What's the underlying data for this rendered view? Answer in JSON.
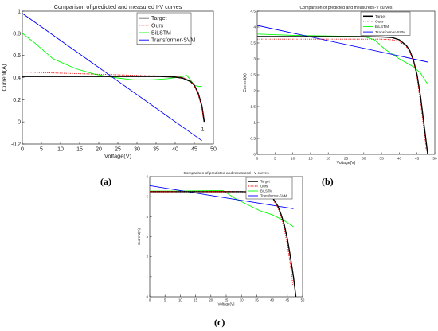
{
  "captions": [
    "(a)",
    "(b)",
    "(c)"
  ],
  "chart_data": [
    {
      "type": "line",
      "title": "Comparison of predicted and measured I-V curves",
      "xlabel": "Voltage(V)",
      "ylabel": "Current(A)",
      "xlim": [
        0,
        50
      ],
      "ylim": [
        -0.2,
        1.0
      ],
      "xticks": [
        "0",
        "5",
        "10",
        "15",
        "20",
        "25",
        "30",
        "35",
        "40",
        "45",
        "50"
      ],
      "yticks": [
        "-0.2",
        "0",
        "0.2",
        "0.4",
        "0.6",
        "0.8",
        "1"
      ],
      "grid": false,
      "legend_position": "top-right",
      "annotations": [
        {
          "text": "1",
          "x": 47.2,
          "y": -0.08,
          "color": "#ff0000"
        }
      ],
      "series": [
        {
          "name": "Target",
          "color": "#000000",
          "style": "solid-thick",
          "x": [
            0,
            10,
            20,
            30,
            36,
            40,
            42,
            44,
            45,
            46,
            47,
            47.6
          ],
          "y": [
            0.41,
            0.41,
            0.41,
            0.41,
            0.41,
            0.405,
            0.395,
            0.365,
            0.33,
            0.26,
            0.14,
            0.0
          ]
        },
        {
          "name": "Ours",
          "color": "#ff0000",
          "style": "dotted",
          "x": [
            0,
            10,
            20,
            30,
            36,
            40,
            42,
            44,
            45,
            46,
            47,
            47.3
          ],
          "y": [
            0.45,
            0.44,
            0.43,
            0.42,
            0.415,
            0.41,
            0.4,
            0.37,
            0.33,
            0.25,
            0.13,
            0.04
          ]
        },
        {
          "name": "BiLSTM",
          "color": "#00ff00",
          "style": "solid",
          "x": [
            0,
            3,
            8,
            14,
            19,
            24,
            29,
            34,
            38,
            40,
            42,
            43,
            44,
            45,
            46,
            47
          ],
          "y": [
            0.8,
            0.72,
            0.57,
            0.48,
            0.43,
            0.4,
            0.38,
            0.38,
            0.39,
            0.4,
            0.41,
            0.42,
            0.38,
            0.33,
            0.32,
            0.32
          ]
        },
        {
          "name": "Transformer-SVM",
          "color": "#0000ff",
          "style": "solid",
          "x": [
            0,
            47
          ],
          "y": [
            0.98,
            -0.17
          ]
        }
      ]
    },
    {
      "type": "line",
      "title": "Comparison of predicted and measured I-V curves",
      "xlabel": "Voltage(V)",
      "ylabel": "Current(A)",
      "xlim": [
        0,
        50
      ],
      "ylim": [
        0,
        4.5
      ],
      "xticks": [
        "0",
        "5",
        "10",
        "15",
        "20",
        "25",
        "30",
        "35",
        "40",
        "45",
        "50"
      ],
      "yticks": [
        "0",
        "0.5",
        "1",
        "1.5",
        "2",
        "2.5",
        "3",
        "3.5",
        "4",
        "4.5"
      ],
      "grid": false,
      "legend_position": "top-right",
      "series": [
        {
          "name": "Target",
          "color": "#000000",
          "style": "solid-thick",
          "x": [
            0,
            10,
            20,
            30,
            35,
            38,
            40,
            42,
            43,
            44,
            45,
            46,
            47,
            48
          ],
          "y": [
            3.7,
            3.7,
            3.7,
            3.7,
            3.69,
            3.67,
            3.6,
            3.42,
            3.25,
            2.95,
            2.5,
            1.8,
            0.9,
            0.0
          ]
        },
        {
          "name": "Ours",
          "color": "#ff0000",
          "style": "dotted",
          "x": [
            0,
            10,
            20,
            30,
            35,
            38,
            40,
            42,
            43,
            44,
            45,
            46,
            47,
            47.6
          ],
          "y": [
            3.62,
            3.62,
            3.62,
            3.62,
            3.62,
            3.6,
            3.55,
            3.38,
            3.2,
            2.9,
            2.4,
            1.6,
            0.7,
            0.1
          ]
        },
        {
          "name": "BiLSTM",
          "color": "#00ff00",
          "style": "solid",
          "x": [
            0,
            10,
            20,
            30,
            33,
            36,
            40,
            44,
            46,
            48
          ],
          "y": [
            3.78,
            3.74,
            3.72,
            3.7,
            3.6,
            3.3,
            3.0,
            2.75,
            2.55,
            2.2
          ]
        },
        {
          "name": "Transformer-SVM",
          "color": "#0000ff",
          "style": "solid",
          "x": [
            0,
            48
          ],
          "y": [
            4.05,
            2.9
          ]
        }
      ]
    },
    {
      "type": "line",
      "title": "Comparison of predicted and measured I-V curves",
      "xlabel": "Voltage(V)",
      "ylabel": "Current(A)",
      "xlim": [
        0,
        50
      ],
      "ylim": [
        0,
        6
      ],
      "xticks": [
        "0",
        "5",
        "10",
        "15",
        "20",
        "25",
        "30",
        "35",
        "40",
        "45",
        "50"
      ],
      "yticks": [
        "0",
        "1",
        "2",
        "3",
        "4",
        "5",
        "6"
      ],
      "grid": false,
      "legend_position": "top-right",
      "series": [
        {
          "name": "Target",
          "color": "#000000",
          "style": "solid-thick",
          "x": [
            0,
            10,
            20,
            30,
            35,
            38,
            40,
            42,
            43,
            44,
            45,
            46,
            47,
            47.8
          ],
          "y": [
            5.25,
            5.25,
            5.25,
            5.25,
            5.23,
            5.18,
            5.0,
            4.5,
            4.1,
            3.6,
            2.9,
            2.0,
            1.0,
            0.0
          ]
        },
        {
          "name": "Ours",
          "color": "#ff0000",
          "style": "dotted",
          "x": [
            0,
            10,
            20,
            30,
            35,
            38,
            40,
            42,
            43,
            44,
            45,
            46,
            46.8
          ],
          "y": [
            5.25,
            5.25,
            5.25,
            5.25,
            5.22,
            5.15,
            4.95,
            4.4,
            3.95,
            3.4,
            2.6,
            1.6,
            0.6
          ]
        },
        {
          "name": "BiLSTM",
          "color": "#00ff00",
          "style": "solid",
          "x": [
            0,
            10,
            20,
            24,
            28,
            32,
            36,
            40,
            44,
            47
          ],
          "y": [
            5.28,
            5.28,
            5.3,
            5.3,
            4.9,
            4.6,
            4.3,
            4.1,
            3.8,
            3.5
          ]
        },
        {
          "name": "Transformer-SVM",
          "color": "#0000ff",
          "style": "solid",
          "x": [
            0,
            47
          ],
          "y": [
            5.55,
            4.4
          ]
        }
      ]
    }
  ]
}
